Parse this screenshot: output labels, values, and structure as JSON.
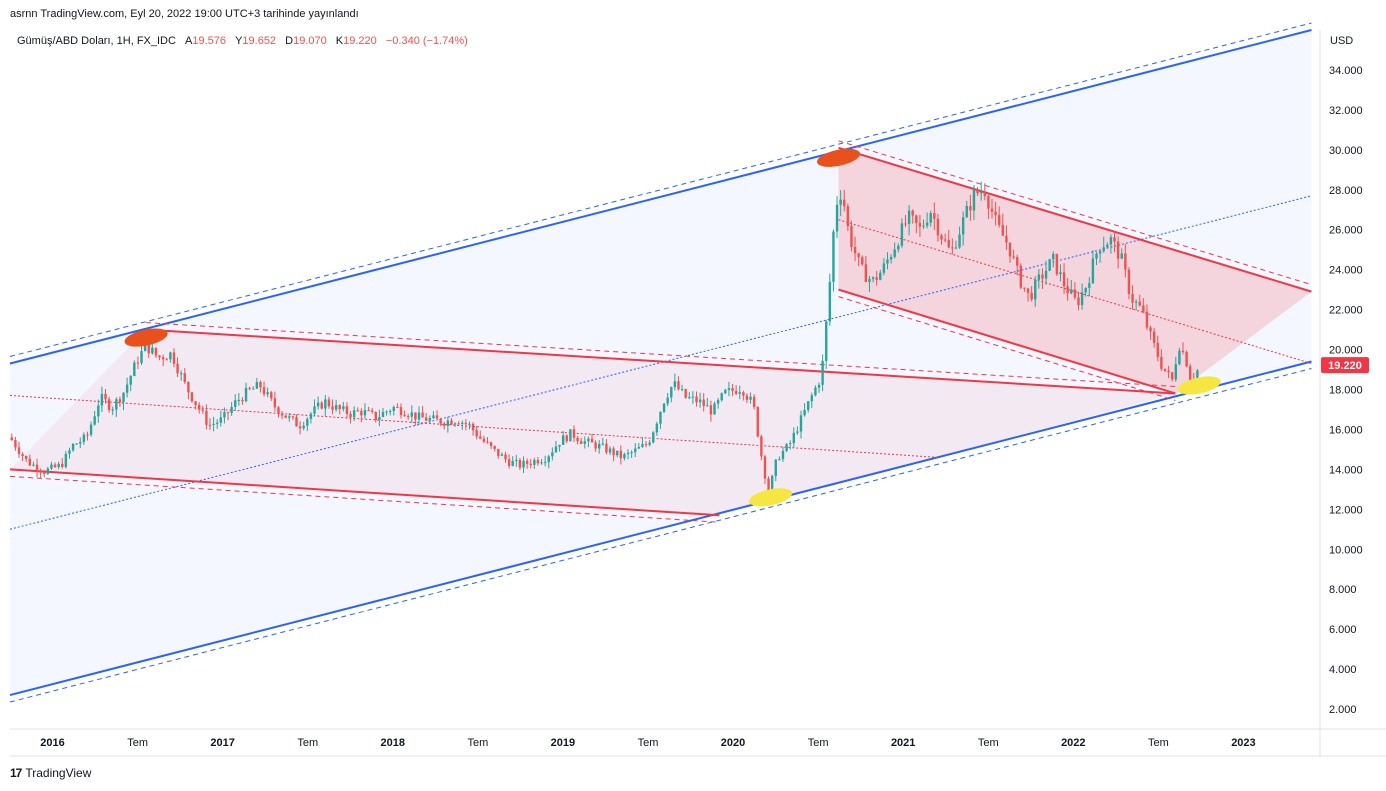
{
  "publisher_line": "asrnn TradingView.com, Eyl 20, 2022 19:00 UTC+3 tarihinde yayınlandı",
  "legend": {
    "symbol": "Gümüş/ABD Doları, 1H, FX_IDC",
    "open_label": "A",
    "open": "19.576",
    "high_label": "Y",
    "high": "19.652",
    "low_label": "D",
    "low": "19.070",
    "close_label": "K",
    "close": "19.220",
    "change": "−0.340 (−1.74%)"
  },
  "brand": {
    "logo": "17",
    "name": "TradingView"
  },
  "colors": {
    "up": "#26a69a",
    "down": "#ef5350",
    "blue_channel": "#2962ff",
    "red_channel": "#f23645",
    "price_tag": "#f23645",
    "marker_orange": "#e8501c",
    "marker_yellow": "#f5e642"
  },
  "chart_data": {
    "type": "candlestick",
    "currency_label": "USD",
    "last_price_tag": "19.220",
    "ylim": [
      1,
      36
    ],
    "xlim": [
      2015.75,
      2023.45
    ],
    "y_ticks": [
      "2.000",
      "4.000",
      "6.000",
      "8.000",
      "10.000",
      "12.000",
      "14.000",
      "16.000",
      "18.000",
      "20.000",
      "22.000",
      "24.000",
      "26.000",
      "28.000",
      "30.000",
      "32.000",
      "34.000"
    ],
    "x_ticks": [
      {
        "label": "2016",
        "x": 2016.0,
        "bold": true
      },
      {
        "label": "Tem",
        "x": 2016.5,
        "bold": false
      },
      {
        "label": "2017",
        "x": 2017.0,
        "bold": true
      },
      {
        "label": "Tem",
        "x": 2017.5,
        "bold": false
      },
      {
        "label": "2018",
        "x": 2018.0,
        "bold": true
      },
      {
        "label": "Tem",
        "x": 2018.5,
        "bold": false
      },
      {
        "label": "2019",
        "x": 2019.0,
        "bold": true
      },
      {
        "label": "Tem",
        "x": 2019.5,
        "bold": false
      },
      {
        "label": "2020",
        "x": 2020.0,
        "bold": true
      },
      {
        "label": "Tem",
        "x": 2020.5,
        "bold": false
      },
      {
        "label": "2021",
        "x": 2021.0,
        "bold": true
      },
      {
        "label": "Tem",
        "x": 2021.5,
        "bold": false
      },
      {
        "label": "2022",
        "x": 2022.0,
        "bold": true
      },
      {
        "label": "Tem",
        "x": 2022.5,
        "bold": false
      },
      {
        "label": "2023",
        "x": 2023.0,
        "bold": true
      }
    ],
    "price_path": [
      [
        2015.75,
        15.6
      ],
      [
        2015.85,
        14.4
      ],
      [
        2015.95,
        13.9
      ],
      [
        2016.05,
        14.2
      ],
      [
        2016.12,
        15.2
      ],
      [
        2016.2,
        15.6
      ],
      [
        2016.28,
        17.6
      ],
      [
        2016.35,
        17.1
      ],
      [
        2016.42,
        17.9
      ],
      [
        2016.5,
        19.5
      ],
      [
        2016.55,
        20.2
      ],
      [
        2016.62,
        19.6
      ],
      [
        2016.7,
        19.8
      ],
      [
        2016.78,
        18.2
      ],
      [
        2016.85,
        17.2
      ],
      [
        2016.92,
        16.2
      ],
      [
        2017.0,
        16.5
      ],
      [
        2017.08,
        17.4
      ],
      [
        2017.15,
        17.9
      ],
      [
        2017.22,
        18.2
      ],
      [
        2017.3,
        17.2
      ],
      [
        2017.38,
        16.6
      ],
      [
        2017.45,
        16.2
      ],
      [
        2017.52,
        16.8
      ],
      [
        2017.6,
        17.4
      ],
      [
        2017.68,
        17.0
      ],
      [
        2017.75,
        16.8
      ],
      [
        2017.82,
        16.9
      ],
      [
        2017.9,
        16.6
      ],
      [
        2018.0,
        17.1
      ],
      [
        2018.08,
        16.9
      ],
      [
        2018.15,
        16.6
      ],
      [
        2018.22,
        16.5
      ],
      [
        2018.3,
        16.4
      ],
      [
        2018.38,
        16.5
      ],
      [
        2018.45,
        16.2
      ],
      [
        2018.52,
        15.5
      ],
      [
        2018.6,
        14.9
      ],
      [
        2018.68,
        14.4
      ],
      [
        2018.75,
        14.2
      ],
      [
        2018.82,
        14.4
      ],
      [
        2018.9,
        14.6
      ],
      [
        2018.98,
        15.4
      ],
      [
        2019.05,
        15.8
      ],
      [
        2019.12,
        15.4
      ],
      [
        2019.2,
        15.2
      ],
      [
        2019.28,
        14.9
      ],
      [
        2019.35,
        14.6
      ],
      [
        2019.42,
        14.9
      ],
      [
        2019.5,
        15.3
      ],
      [
        2019.55,
        16.4
      ],
      [
        2019.6,
        17.6
      ],
      [
        2019.65,
        18.3
      ],
      [
        2019.72,
        17.6
      ],
      [
        2019.8,
        17.4
      ],
      [
        2019.88,
        16.9
      ],
      [
        2019.95,
        17.8
      ],
      [
        2020.05,
        18.1
      ],
      [
        2020.12,
        17.2
      ],
      [
        2020.17,
        14.5
      ],
      [
        2020.21,
        12.8
      ],
      [
        2020.26,
        14.6
      ],
      [
        2020.33,
        15.2
      ],
      [
        2020.4,
        16.5
      ],
      [
        2020.47,
        17.8
      ],
      [
        2020.52,
        18.7
      ],
      [
        2020.55,
        21.5
      ],
      [
        2020.58,
        24.5
      ],
      [
        2020.6,
        27.2
      ],
      [
        2020.64,
        28.0
      ],
      [
        2020.68,
        25.8
      ],
      [
        2020.75,
        24.0
      ],
      [
        2020.82,
        23.4
      ],
      [
        2020.88,
        24.0
      ],
      [
        2020.95,
        25.2
      ],
      [
        2021.03,
        26.6
      ],
      [
        2021.1,
        26.0
      ],
      [
        2021.16,
        27.0
      ],
      [
        2021.22,
        25.8
      ],
      [
        2021.28,
        24.8
      ],
      [
        2021.36,
        26.6
      ],
      [
        2021.42,
        27.8
      ],
      [
        2021.48,
        28.0
      ],
      [
        2021.55,
        26.2
      ],
      [
        2021.62,
        25.2
      ],
      [
        2021.68,
        23.6
      ],
      [
        2021.74,
        22.6
      ],
      [
        2021.8,
        23.5
      ],
      [
        2021.88,
        24.5
      ],
      [
        2021.95,
        23.2
      ],
      [
        2022.02,
        22.3
      ],
      [
        2022.08,
        23.3
      ],
      [
        2022.15,
        25.2
      ],
      [
        2022.22,
        25.5
      ],
      [
        2022.28,
        24.6
      ],
      [
        2022.34,
        22.6
      ],
      [
        2022.4,
        22.0
      ],
      [
        2022.46,
        20.5
      ],
      [
        2022.52,
        19.2
      ],
      [
        2022.58,
        18.4
      ],
      [
        2022.62,
        20.3
      ],
      [
        2022.66,
        19.6
      ],
      [
        2022.7,
        18.2
      ],
      [
        2022.74,
        19.2
      ]
    ],
    "blue_channel": {
      "upper": [
        [
          2015.75,
          19.3
        ],
        [
          2023.4,
          36.0
        ]
      ],
      "lower": [
        [
          2015.75,
          2.7
        ],
        [
          2023.4,
          19.4
        ]
      ],
      "mid": [
        [
          2015.75,
          11.0
        ],
        [
          2023.4,
          27.7
        ]
      ]
    },
    "red_channel_1": {
      "upper": [
        [
          2016.55,
          21.0
        ],
        [
          2022.6,
          17.8
        ]
      ],
      "lower": [
        [
          2015.75,
          14.0
        ],
        [
          2019.92,
          11.7
        ]
      ],
      "mid": [
        [
          2015.75,
          17.7
        ],
        [
          2021.2,
          14.6
        ]
      ]
    },
    "red_channel_2": {
      "upper": [
        [
          2020.62,
          30.1
        ],
        [
          2023.4,
          22.9
        ]
      ],
      "lower": [
        [
          2020.62,
          23.0
        ],
        [
          2022.6,
          17.8
        ]
      ],
      "mid": [
        [
          2020.62,
          26.5
        ],
        [
          2023.4,
          19.3
        ]
      ]
    },
    "markers": [
      {
        "x": 2016.55,
        "y": 20.6,
        "color": "orange"
      },
      {
        "x": 2020.62,
        "y": 29.6,
        "color": "orange"
      },
      {
        "x": 2020.22,
        "y": 12.6,
        "color": "yellow"
      },
      {
        "x": 2022.74,
        "y": 18.2,
        "color": "yellow"
      }
    ]
  }
}
